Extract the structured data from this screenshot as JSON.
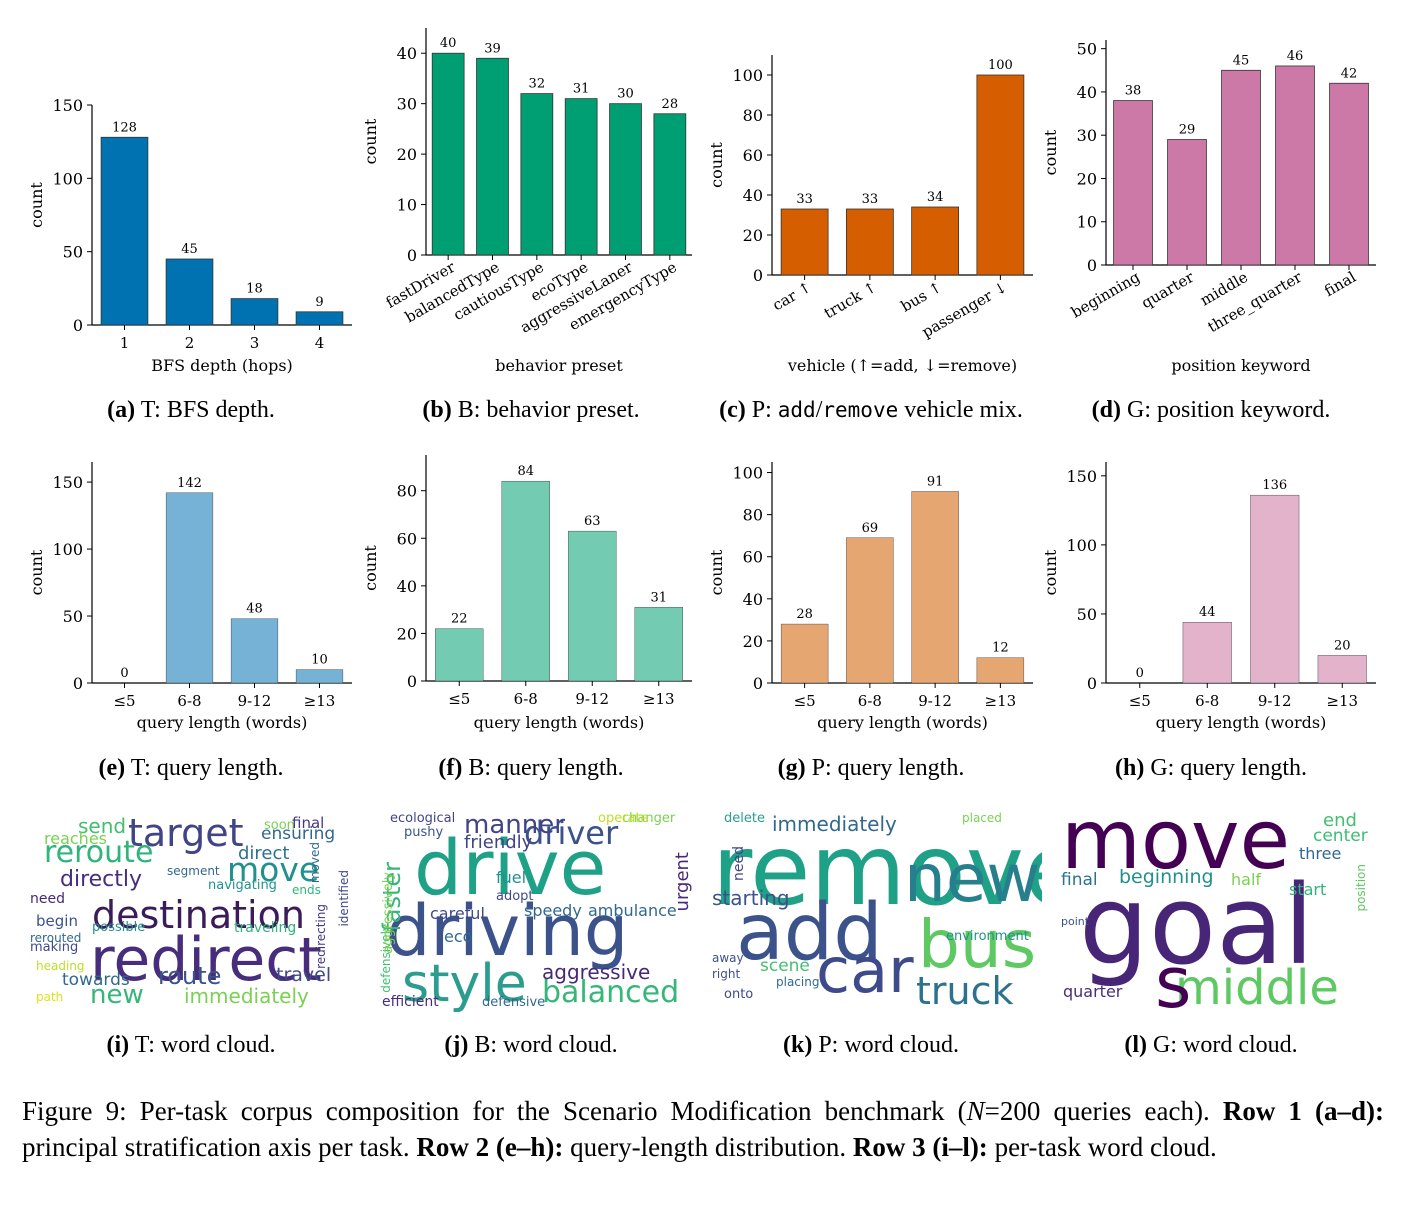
{
  "chart_data": [
    {
      "id": "a",
      "type": "bar",
      "categories": [
        "1",
        "2",
        "3",
        "4"
      ],
      "values": [
        128,
        45,
        18,
        9
      ],
      "xlabel": "BFS depth (hops)",
      "ylabel": "count",
      "ylim": [
        0,
        150
      ],
      "yticks": [
        0,
        50,
        100,
        150
      ],
      "color": "#0072b2",
      "rotate_xticks": false
    },
    {
      "id": "b",
      "type": "bar",
      "categories": [
        "fastDriver",
        "balancedType",
        "cautiousType",
        "ecoType",
        "aggressiveLaner",
        "emergencyType"
      ],
      "values": [
        40,
        39,
        32,
        31,
        30,
        28
      ],
      "xlabel": "behavior preset",
      "ylabel": "count",
      "ylim": [
        0,
        45
      ],
      "yticks": [
        0,
        10,
        20,
        30,
        40
      ],
      "color": "#009e73",
      "rotate_xticks": true
    },
    {
      "id": "c",
      "type": "bar",
      "categories": [
        "car ↑",
        "truck ↑",
        "bus ↑",
        "passenger ↓"
      ],
      "values": [
        33,
        33,
        34,
        100
      ],
      "xlabel": "vehicle (↑=add, ↓=remove)",
      "ylabel": "count",
      "ylim": [
        0,
        110
      ],
      "yticks": [
        0,
        20,
        40,
        60,
        80,
        100
      ],
      "color": "#d55e00",
      "rotate_xticks": true
    },
    {
      "id": "d",
      "type": "bar",
      "categories": [
        "beginning",
        "quarter",
        "middle",
        "three_quarter",
        "final"
      ],
      "values": [
        38,
        29,
        45,
        46,
        42
      ],
      "xlabel": "position keyword",
      "ylabel": "count",
      "ylim": [
        0,
        52
      ],
      "yticks": [
        0,
        10,
        20,
        30,
        40,
        50
      ],
      "color": "#cc79a7",
      "rotate_xticks": true
    },
    {
      "id": "e",
      "type": "bar",
      "categories": [
        "≤5",
        "6-8",
        "9-12",
        "≥13"
      ],
      "values": [
        0,
        142,
        48,
        10
      ],
      "xlabel": "query length (words)",
      "ylabel": "count",
      "ylim": [
        0,
        165
      ],
      "yticks": [
        0,
        50,
        100,
        150
      ],
      "color": "#76b1d6",
      "rotate_xticks": false
    },
    {
      "id": "f",
      "type": "bar",
      "categories": [
        "≤5",
        "6-8",
        "9-12",
        "≥13"
      ],
      "values": [
        22,
        84,
        63,
        31
      ],
      "xlabel": "query length (words)",
      "ylabel": "count",
      "ylim": [
        0,
        95
      ],
      "yticks": [
        0,
        20,
        40,
        60,
        80
      ],
      "color": "#73cbb2",
      "rotate_xticks": false
    },
    {
      "id": "g",
      "type": "bar",
      "categories": [
        "≤5",
        "6-8",
        "9-12",
        "≥13"
      ],
      "values": [
        28,
        69,
        91,
        12
      ],
      "xlabel": "query length (words)",
      "ylabel": "count",
      "ylim": [
        0,
        105
      ],
      "yticks": [
        0,
        20,
        40,
        60,
        80,
        100
      ],
      "color": "#e6a672",
      "rotate_xticks": false
    },
    {
      "id": "h",
      "type": "bar",
      "categories": [
        "≤5",
        "6-8",
        "9-12",
        "≥13"
      ],
      "values": [
        0,
        44,
        136,
        20
      ],
      "xlabel": "query length (words)",
      "ylabel": "count",
      "ylim": [
        0,
        160
      ],
      "yticks": [
        0,
        50,
        100,
        150
      ],
      "color": "#e3b3cc",
      "rotate_xticks": false
    }
  ],
  "captions": [
    {
      "letter": "(a)",
      "text": " T: BFS depth."
    },
    {
      "letter": "(b)",
      "text": " B: behavior preset."
    },
    {
      "letter": "(c)",
      "text": " P: ",
      "mono1": "add",
      "slash": "/",
      "mono2": "remove",
      "rest": " vehicle mix."
    },
    {
      "letter": "(d)",
      "text": " G: position keyword."
    },
    {
      "letter": "(e)",
      "text": " T: query length."
    },
    {
      "letter": "(f)",
      "text": " B: query length."
    },
    {
      "letter": "(g)",
      "text": " P: query length."
    },
    {
      "letter": "(h)",
      "text": " G: query length."
    },
    {
      "letter": "(i)",
      "text": " T: word cloud."
    },
    {
      "letter": "(j)",
      "text": " B: word cloud."
    },
    {
      "letter": "(k)",
      "text": " P: word cloud."
    },
    {
      "letter": "(l)",
      "text": " G: word cloud."
    }
  ],
  "wordclouds": [
    {
      "id": "i",
      "words": [
        {
          "w": "redirect",
          "c": "#472d7b"
        },
        {
          "w": "destination",
          "c": "#3b1c5a"
        },
        {
          "w": "target",
          "c": "#414487"
        },
        {
          "w": "reroute",
          "c": "#2fb47c"
        },
        {
          "w": "move",
          "c": "#21918c"
        },
        {
          "w": "directly",
          "c": "#472d7b"
        },
        {
          "w": "route",
          "c": "#3b528b"
        },
        {
          "w": "new",
          "c": "#35b779"
        },
        {
          "w": "immediately",
          "c": "#7ad151"
        },
        {
          "w": "towards",
          "c": "#31688e"
        },
        {
          "w": "travel",
          "c": "#3e4a89"
        },
        {
          "w": "direct",
          "c": "#2c728e"
        },
        {
          "w": "send",
          "c": "#44bf70"
        },
        {
          "w": "ensuring",
          "c": "#31688e"
        },
        {
          "w": "reaches",
          "c": "#7ad151"
        },
        {
          "w": "soon",
          "c": "#7ad151"
        },
        {
          "w": "final",
          "c": "#443983"
        },
        {
          "w": "segment",
          "c": "#31688e"
        },
        {
          "w": "navigating",
          "c": "#21918c"
        },
        {
          "w": "need",
          "c": "#482878"
        },
        {
          "w": "begin",
          "c": "#3b528b"
        },
        {
          "w": "possible",
          "c": "#21918c"
        },
        {
          "w": "traveling",
          "c": "#2fb47c"
        },
        {
          "w": "rerouted",
          "c": "#31688e"
        },
        {
          "w": "making",
          "c": "#3e4a89"
        },
        {
          "w": "heading",
          "c": "#bddf26"
        },
        {
          "w": "path",
          "c": "#dde318"
        },
        {
          "w": "ends",
          "c": "#2fb47c"
        },
        {
          "w": "moved",
          "c": "#31688e"
        },
        {
          "w": "redirecting",
          "c": "#443983"
        },
        {
          "w": "identified",
          "c": "#3e4a89"
        }
      ]
    },
    {
      "id": "j",
      "words": [
        {
          "w": "drive",
          "c": "#1fa187"
        },
        {
          "w": "driving",
          "c": "#3b528b"
        },
        {
          "w": "style",
          "c": "#2a9d8f"
        },
        {
          "w": "balanced",
          "c": "#35b779"
        },
        {
          "w": "driver",
          "c": "#3b528b"
        },
        {
          "w": "manner",
          "c": "#414487"
        },
        {
          "w": "faster",
          "c": "#35b779"
        },
        {
          "w": "friendly",
          "c": "#414487"
        },
        {
          "w": "aggressive",
          "c": "#482878"
        },
        {
          "w": "fuel",
          "c": "#21918c"
        },
        {
          "w": "speedy",
          "c": "#31688e"
        },
        {
          "w": "ambulance",
          "c": "#31688e"
        },
        {
          "w": "careful",
          "c": "#3e4a89"
        },
        {
          "w": "eco",
          "c": "#31688e"
        },
        {
          "w": "efficient",
          "c": "#472d7b"
        },
        {
          "w": "defensive",
          "c": "#31688e"
        },
        {
          "w": "urgent",
          "c": "#482878"
        },
        {
          "w": "changer",
          "c": "#7ad151"
        },
        {
          "w": "operate",
          "c": "#bddf26"
        },
        {
          "w": "ecological",
          "c": "#414487"
        },
        {
          "w": "pushy",
          "c": "#3b528b"
        },
        {
          "w": "adopt",
          "c": "#3e4a89"
        },
        {
          "w": "defensively",
          "c": "#44bf70"
        },
        {
          "w": "aggressively",
          "c": "#7ad151"
        }
      ]
    },
    {
      "id": "k",
      "words": [
        {
          "w": "remove",
          "c": "#1fa187"
        },
        {
          "w": "add",
          "c": "#3b528b"
        },
        {
          "w": "new",
          "c": "#277f8e"
        },
        {
          "w": "bus",
          "c": "#5ec962"
        },
        {
          "w": "car",
          "c": "#3e4a89"
        },
        {
          "w": "truck",
          "c": "#2c728e"
        },
        {
          "w": "immediately",
          "c": "#31688e"
        },
        {
          "w": "starting",
          "c": "#3b528b"
        },
        {
          "w": "scene",
          "c": "#44bf70"
        },
        {
          "w": "environment",
          "c": "#21918c"
        },
        {
          "w": "delete",
          "c": "#2a9d8f"
        },
        {
          "w": "placed",
          "c": "#7ad151"
        },
        {
          "w": "need",
          "c": "#414487"
        },
        {
          "w": "away",
          "c": "#3b528b"
        },
        {
          "w": "right",
          "c": "#3b528b"
        },
        {
          "w": "onto",
          "c": "#3e4a89"
        },
        {
          "w": "placing",
          "c": "#31688e"
        }
      ]
    },
    {
      "id": "l",
      "words": [
        {
          "w": "move",
          "c": "#440154"
        },
        {
          "w": "goal",
          "c": "#482677"
        },
        {
          "w": "middle",
          "c": "#5ec962"
        },
        {
          "w": "s",
          "c": "#440154"
        },
        {
          "w": "final",
          "c": "#2c728e"
        },
        {
          "w": "beginning",
          "c": "#21918c"
        },
        {
          "w": "half",
          "c": "#7ad151"
        },
        {
          "w": "end",
          "c": "#44bf70"
        },
        {
          "w": "center",
          "c": "#3dbc74"
        },
        {
          "w": "three",
          "c": "#31688e"
        },
        {
          "w": "start",
          "c": "#2fb47c"
        },
        {
          "w": "quarter",
          "c": "#472d7b"
        },
        {
          "w": "position",
          "c": "#5ec962"
        },
        {
          "w": "point",
          "c": "#3b528b"
        }
      ]
    }
  ],
  "figure_caption": {
    "prefix": "Figure 9: Per-task corpus composition for the Scenario Modification benchmark (",
    "n_var": "N",
    "n_eq": "=200 queries each). ",
    "r1b": "Row 1 (a–d):",
    "r1": " principal stratification axis per task. ",
    "r2b": "Row 2 (e–h):",
    "r2": " query-length distribution. ",
    "r3b": "Row 3 (i–l):",
    "r3": " per-task word cloud."
  }
}
